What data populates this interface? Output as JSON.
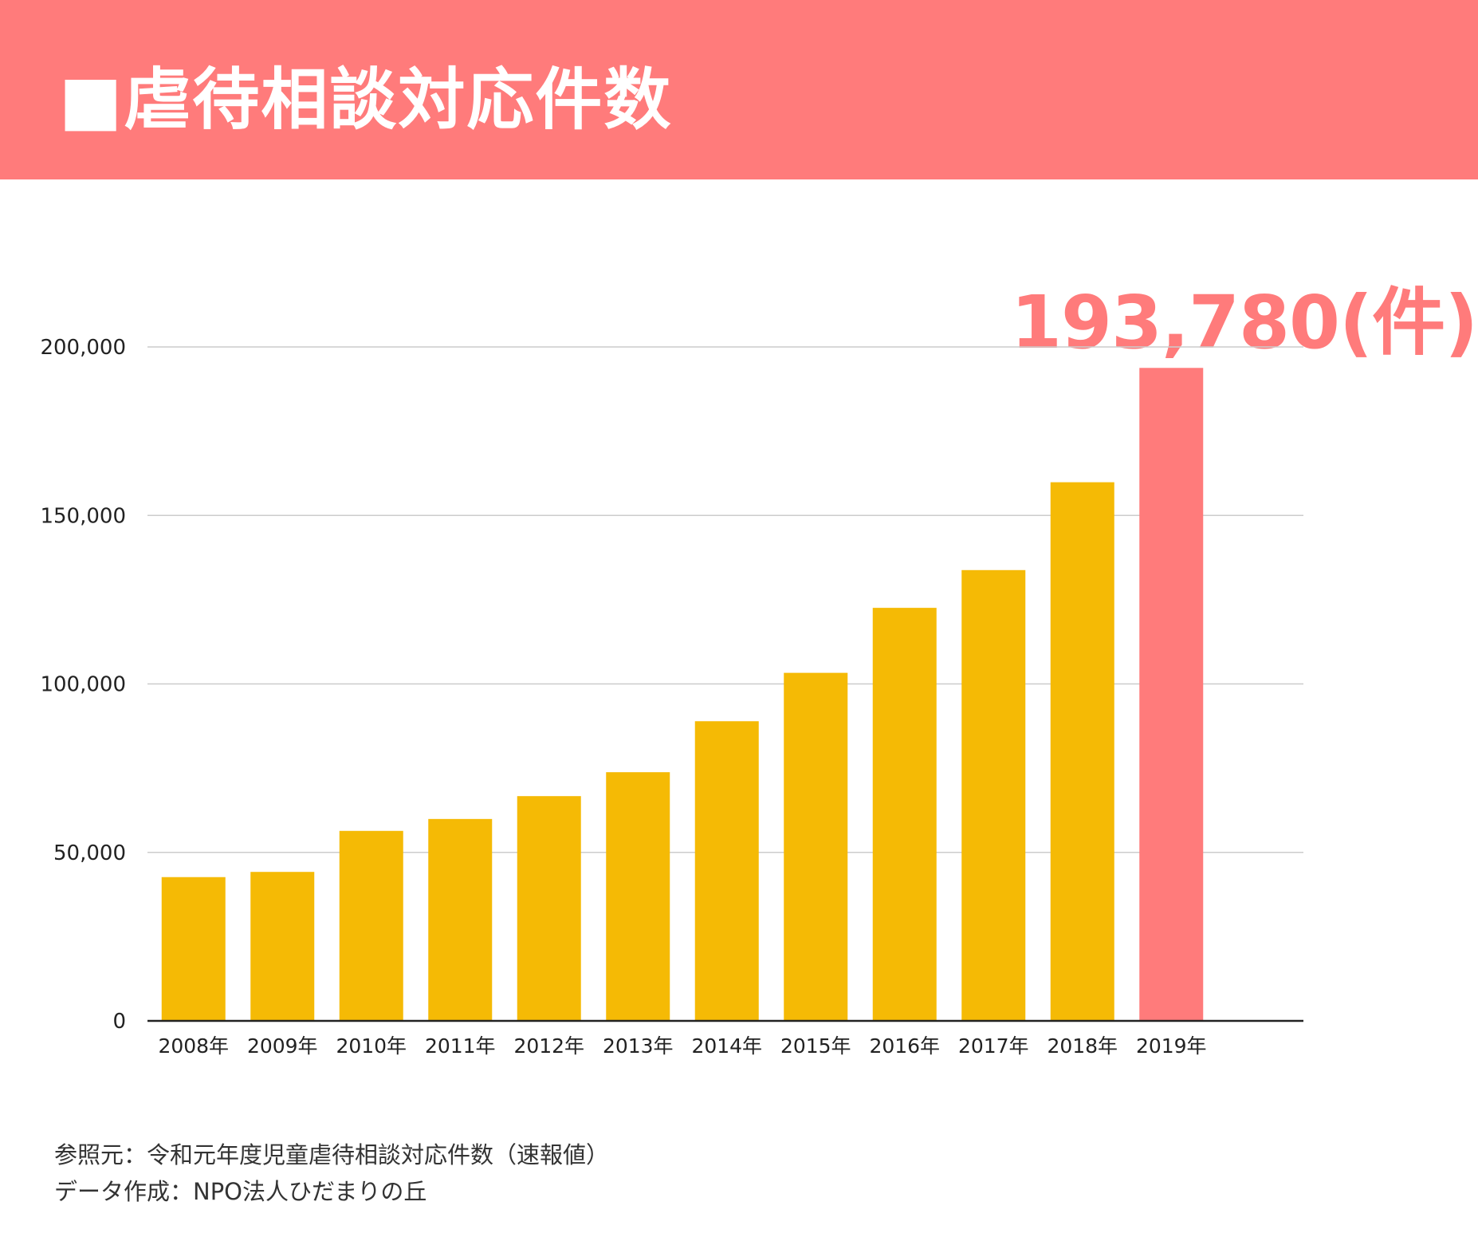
{
  "header": {
    "title": "■虐待相談対応件数"
  },
  "highlight_label": "193,780(件)",
  "source": {
    "line1": "参照元：令和元年度児童虐待相談対応件数（速報値）",
    "line2": "データ作成：NPO法人ひだまりの丘"
  },
  "colors": {
    "header_bg": "#ff7b7b",
    "bar": "#f5ba05",
    "bar_highlight": "#ff7b7b",
    "grid": "#cccccc",
    "axis": "#222222"
  },
  "chart_data": {
    "type": "bar",
    "categories": [
      "2008年",
      "2009年",
      "2010年",
      "2011年",
      "2012年",
      "2013年",
      "2014年",
      "2015年",
      "2016年",
      "2017年",
      "2018年",
      "2019年"
    ],
    "values": [
      42664,
      44211,
      56384,
      59919,
      66701,
      73802,
      88931,
      103286,
      122575,
      133778,
      159850,
      193780
    ],
    "highlight_index": 11,
    "ylim": [
      0,
      200000
    ],
    "yticks": [
      0,
      50000,
      100000,
      150000,
      200000
    ],
    "ytick_labels": [
      "0",
      "50,000",
      "100,000",
      "150,000",
      "200,000"
    ],
    "grid": true,
    "title": "",
    "xlabel": "",
    "ylabel": ""
  }
}
